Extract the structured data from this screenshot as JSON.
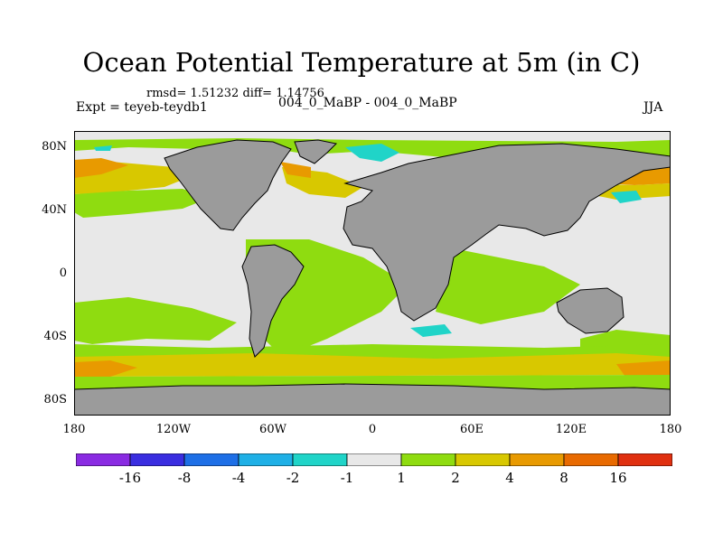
{
  "title": "Ocean Potential Temperature at 5m (in C)",
  "stats": "rmsd= 1.51232 diff= 1.14756",
  "expt": "Expt = teyeb-teydb1",
  "center_label": "004_0_MaBP - 004_0_MaBP",
  "season": "JJA",
  "lat_labels": [
    {
      "text": "80N",
      "lat": 80
    },
    {
      "text": "40N",
      "lat": 40
    },
    {
      "text": "0",
      "lat": 0
    },
    {
      "text": "40S",
      "lat": -40
    },
    {
      "text": "80S",
      "lat": -80
    }
  ],
  "lon_labels": [
    {
      "text": "180",
      "lon": -180
    },
    {
      "text": "120W",
      "lon": -120
    },
    {
      "text": "60W",
      "lon": -60
    },
    {
      "text": "0",
      "lon": 0
    },
    {
      "text": "60E",
      "lon": 60
    },
    {
      "text": "120E",
      "lon": 120
    },
    {
      "text": "180",
      "lon": 180
    }
  ],
  "colorbar": {
    "colors": [
      "#8a2be2",
      "#3a2ee0",
      "#1e6fe6",
      "#1fb0e6",
      "#20d4c8",
      "#e8e8e8",
      "#8fdc10",
      "#d8c800",
      "#e89a00",
      "#e86a00",
      "#e03010"
    ],
    "labels": [
      "-16",
      "-8",
      "-4",
      "-2",
      "-1",
      "1",
      "2",
      "4",
      "8",
      "16"
    ]
  },
  "colors": {
    "land": "#9b9b9b",
    "neutral": "#e8e8e8",
    "green": "#8fdc10",
    "yellow": "#d8c800",
    "orange": "#e89a00",
    "cyan": "#20d4c8"
  }
}
